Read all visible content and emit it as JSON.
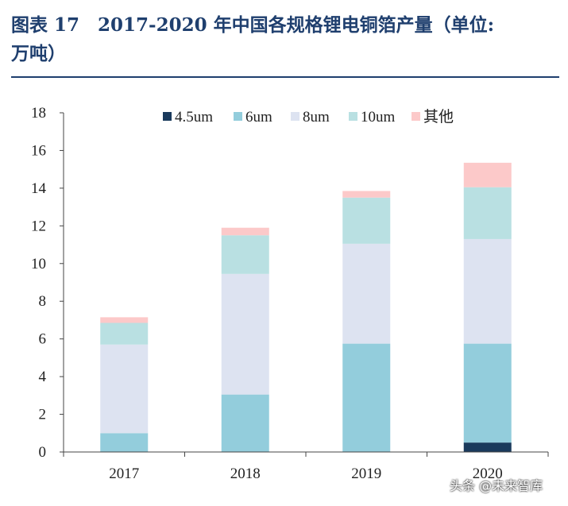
{
  "figure": {
    "title_line1": "图表 17　2017-2020 年中国各规格锂电铜箔产量（单位:",
    "title_line2": "万吨）"
  },
  "watermark": "头条 @未来智库",
  "chart_data": {
    "type": "bar",
    "stacked": true,
    "title": "",
    "xlabel": "",
    "ylabel": "",
    "categories": [
      "2017",
      "2018",
      "2019",
      "2020"
    ],
    "ylim": [
      0,
      18
    ],
    "yticks": [
      0,
      2,
      4,
      6,
      8,
      10,
      12,
      14,
      16,
      18
    ],
    "grid": false,
    "legend_position": "top",
    "series": [
      {
        "name": "4.5um",
        "color": "#1a3a5c",
        "values": [
          0,
          0,
          0,
          0.5
        ]
      },
      {
        "name": "6um",
        "color": "#93cddc",
        "values": [
          1.0,
          3.05,
          5.75,
          5.25
        ]
      },
      {
        "name": "8um",
        "color": "#dde3f1",
        "values": [
          4.7,
          6.4,
          5.3,
          5.55
        ]
      },
      {
        "name": "10um",
        "color": "#b9e0e2",
        "values": [
          1.15,
          2.05,
          2.45,
          2.75
        ]
      },
      {
        "name": "其他",
        "color": "#fcc9c9",
        "values": [
          0.3,
          0.4,
          0.35,
          1.3
        ]
      }
    ]
  }
}
